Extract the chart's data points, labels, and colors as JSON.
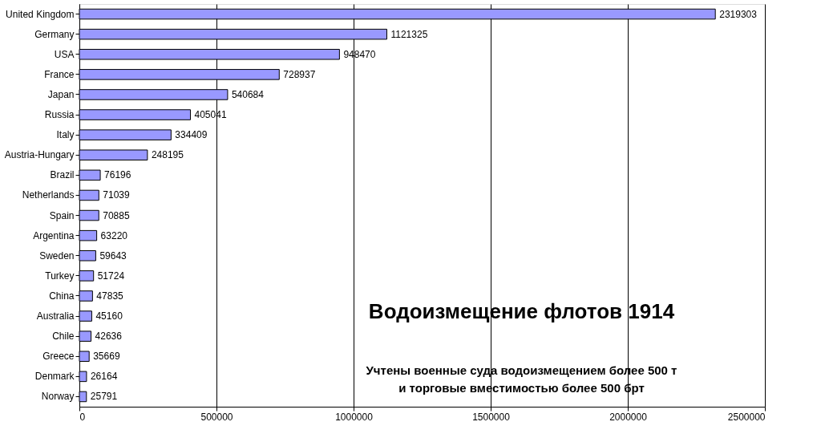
{
  "chart_data": {
    "type": "bar",
    "orientation": "horizontal",
    "title": "Водоизмещение флотов 1914",
    "subtitle": [
      "Учтены военные суда водоизмещением более 500 т",
      "и торговые вместимостью более 500 брт"
    ],
    "categories": [
      "United Kingdom",
      "Germany",
      "USA",
      "France",
      "Japan",
      "Russia",
      "Italy",
      "Austria-Hungary",
      "Brazil",
      "Netherlands",
      "Spain",
      "Argentina",
      "Sweden",
      "Turkey",
      "China",
      "Australia",
      "Chile",
      "Greece",
      "Denmark",
      "Norway"
    ],
    "values": [
      2319303,
      1121325,
      948470,
      728937,
      540684,
      405041,
      334409,
      248195,
      76196,
      71039,
      70885,
      63220,
      59643,
      51724,
      47835,
      45160,
      42636,
      35669,
      26164,
      25791
    ],
    "color": "#9999ff",
    "xlim": [
      0,
      2500000
    ],
    "xticks": [
      0,
      500000,
      1000000,
      1500000,
      2000000,
      2500000
    ],
    "grid": "x",
    "data_labels": true
  }
}
